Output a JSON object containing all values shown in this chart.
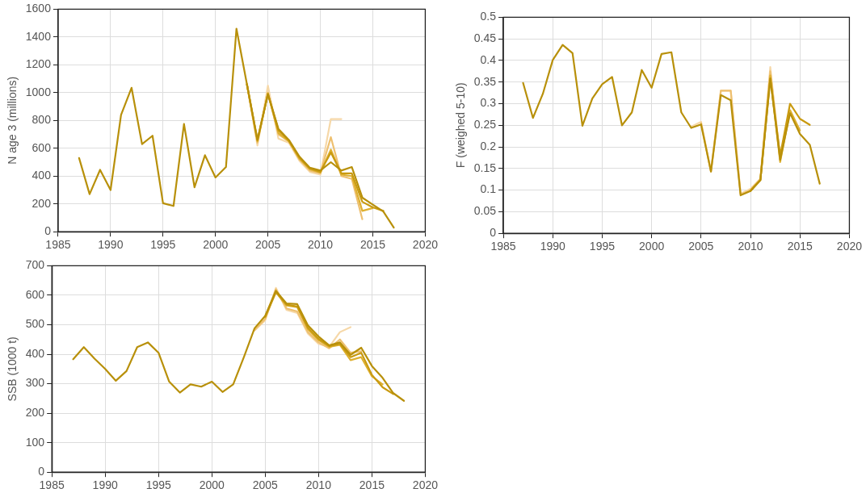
{
  "chart_data": [
    {
      "type": "line",
      "ylabel": "N age 3 (millions)",
      "xlim": [
        1985,
        2020
      ],
      "xticks": [
        1985,
        1990,
        1995,
        2000,
        2005,
        2010,
        2015,
        2020
      ],
      "ylim": [
        0,
        1600
      ],
      "yticks": [
        0,
        200,
        400,
        600,
        800,
        1000,
        1200,
        1400,
        1600
      ],
      "grid": true,
      "legend": false,
      "marker": "none",
      "line_style": "solid",
      "series": [
        {
          "color": "#b8900a",
          "x": [
            1987,
            1988,
            1989,
            1990,
            1991,
            1992,
            1993,
            1994,
            1995,
            1996,
            1997,
            1998,
            1999,
            2000,
            2001,
            2002,
            2003,
            2004,
            2005,
            2006,
            2007,
            2008,
            2009,
            2010,
            2011,
            2012,
            2013,
            2014,
            2015,
            2016,
            2017
          ],
          "values": [
            530,
            270,
            445,
            300,
            840,
            1035,
            630,
            690,
            205,
            185,
            775,
            320,
            550,
            390,
            465,
            1460,
            1060,
            660,
            990,
            740,
            660,
            540,
            460,
            440,
            500,
            440,
            465,
            245,
            195,
            145,
            30
          ]
        },
        {
          "color": "#c99a10",
          "x": [
            2003,
            2004,
            2005,
            2006,
            2007,
            2008,
            2009,
            2010,
            2011,
            2012,
            2013,
            2014,
            2015,
            2016
          ],
          "values": [
            1060,
            660,
            990,
            730,
            655,
            535,
            455,
            430,
            570,
            420,
            420,
            215,
            175,
            150
          ]
        },
        {
          "color": "#deb030",
          "x": [
            2003,
            2004,
            2005,
            2006,
            2007,
            2008,
            2009,
            2010,
            2011,
            2012,
            2013,
            2014,
            2015
          ],
          "values": [
            1060,
            650,
            995,
            710,
            650,
            525,
            450,
            425,
            590,
            410,
            400,
            150,
            170
          ]
        },
        {
          "color": "#eec070",
          "x": [
            2003,
            2004,
            2005,
            2006,
            2007,
            2008,
            2009,
            2010,
            2011,
            2012,
            2013,
            2014
          ],
          "values": [
            1060,
            640,
            1000,
            700,
            650,
            520,
            440,
            420,
            680,
            400,
            380,
            90
          ]
        },
        {
          "color": "#f6d8a8",
          "x": [
            2003,
            2004,
            2005,
            2006,
            2007,
            2008,
            2009,
            2010,
            2011,
            2012
          ],
          "values": [
            1060,
            620,
            1050,
            670,
            640,
            510,
            430,
            410,
            810,
            810
          ]
        }
      ]
    },
    {
      "type": "line",
      "ylabel": "F (weighed 5-10)",
      "xlim": [
        1985,
        2020
      ],
      "xticks": [
        1985,
        1990,
        1995,
        2000,
        2005,
        2010,
        2015,
        2020
      ],
      "ylim": [
        0,
        0.5
      ],
      "yticks": [
        0,
        0.05,
        0.1,
        0.15,
        0.2,
        0.25,
        0.3,
        0.35,
        0.4,
        0.45,
        0.5
      ],
      "grid": true,
      "legend": false,
      "marker": "none",
      "line_style": "solid",
      "series": [
        {
          "color": "#b8900a",
          "x": [
            1987,
            1988,
            1989,
            1990,
            1991,
            1992,
            1993,
            1994,
            1995,
            1996,
            1997,
            1998,
            1999,
            2000,
            2001,
            2002,
            2003,
            2004,
            2005,
            2006,
            2007,
            2008,
            2009,
            2010,
            2011,
            2012,
            2013,
            2014,
            2015,
            2016,
            2017
          ],
          "values": [
            0.348,
            0.267,
            0.323,
            0.401,
            0.436,
            0.417,
            0.249,
            0.312,
            0.345,
            0.362,
            0.25,
            0.28,
            0.378,
            0.337,
            0.415,
            0.419,
            0.28,
            0.244,
            0.252,
            0.143,
            0.32,
            0.308,
            0.088,
            0.098,
            0.123,
            0.358,
            0.17,
            0.278,
            0.23,
            0.205,
            0.115
          ]
        },
        {
          "color": "#c99a10",
          "x": [
            2010,
            2011,
            2012,
            2013,
            2014,
            2015,
            2016
          ],
          "values": [
            0.098,
            0.123,
            0.358,
            0.18,
            0.3,
            0.265,
            0.251
          ]
        },
        {
          "color": "#deb030",
          "x": [
            2010,
            2011,
            2012,
            2013,
            2014,
            2015
          ],
          "values": [
            0.1,
            0.124,
            0.365,
            0.165,
            0.285,
            0.238
          ]
        },
        {
          "color": "#eec070",
          "x": [
            2005,
            2006,
            2007,
            2008,
            2009,
            2010,
            2011,
            2012,
            2013,
            2014
          ],
          "values": [
            0.255,
            0.143,
            0.33,
            0.33,
            0.09,
            0.1,
            0.125,
            0.375,
            0.175,
            0.28
          ]
        },
        {
          "color": "#f6d8a8",
          "x": [
            2004,
            2005,
            2006,
            2007,
            2008,
            2009,
            2010,
            2011,
            2012,
            2013
          ],
          "values": [
            0.247,
            0.258,
            0.143,
            0.33,
            0.33,
            0.092,
            0.103,
            0.127,
            0.385,
            0.17
          ]
        }
      ]
    },
    {
      "type": "line",
      "ylabel": "SSB (1000 t)",
      "xlim": [
        1985,
        2020
      ],
      "xticks": [
        1985,
        1990,
        1995,
        2000,
        2005,
        2010,
        2015,
        2020
      ],
      "ylim": [
        0,
        700
      ],
      "yticks": [
        0,
        100,
        200,
        300,
        400,
        500,
        600,
        700
      ],
      "grid": true,
      "legend": false,
      "marker": "none",
      "line_style": "solid",
      "series": [
        {
          "color": "#b8900a",
          "x": [
            1987,
            1988,
            1989,
            1990,
            1991,
            1992,
            1993,
            1994,
            1995,
            1996,
            1997,
            1998,
            1999,
            2000,
            2001,
            2002,
            2003,
            2004,
            2005,
            2006,
            2007,
            2008,
            2009,
            2010,
            2011,
            2012,
            2013,
            2014,
            2015,
            2016,
            2017,
            2018
          ],
          "values": [
            383,
            424,
            385,
            350,
            310,
            343,
            424,
            440,
            405,
            307,
            270,
            298,
            290,
            307,
            272,
            298,
            390,
            488,
            530,
            615,
            572,
            570,
            498,
            460,
            430,
            440,
            398,
            422,
            360,
            320,
            268,
            242
          ]
        },
        {
          "color": "#c99a10",
          "x": [
            2005,
            2006,
            2007,
            2008,
            2009,
            2010,
            2011,
            2012,
            2013,
            2014,
            2015,
            2016,
            2017
          ],
          "values": [
            528,
            612,
            568,
            562,
            490,
            452,
            428,
            435,
            390,
            405,
            330,
            288,
            265
          ]
        },
        {
          "color": "#deb030",
          "x": [
            2005,
            2006,
            2007,
            2008,
            2009,
            2010,
            2011,
            2012,
            2013,
            2014,
            2015,
            2016
          ],
          "values": [
            525,
            610,
            565,
            560,
            485,
            448,
            425,
            432,
            380,
            390,
            325,
            298
          ]
        },
        {
          "color": "#eec070",
          "x": [
            2004,
            2005,
            2006,
            2007,
            2008,
            2009,
            2010,
            2011,
            2012,
            2013,
            2014
          ],
          "values": [
            482,
            520,
            620,
            555,
            545,
            475,
            440,
            420,
            450,
            405,
            410
          ]
        },
        {
          "color": "#f6d8a8",
          "x": [
            2004,
            2005,
            2006,
            2007,
            2008,
            2009,
            2010,
            2011,
            2012,
            2013
          ],
          "values": [
            480,
            515,
            625,
            550,
            540,
            470,
            435,
            425,
            475,
            492
          ]
        }
      ]
    }
  ]
}
